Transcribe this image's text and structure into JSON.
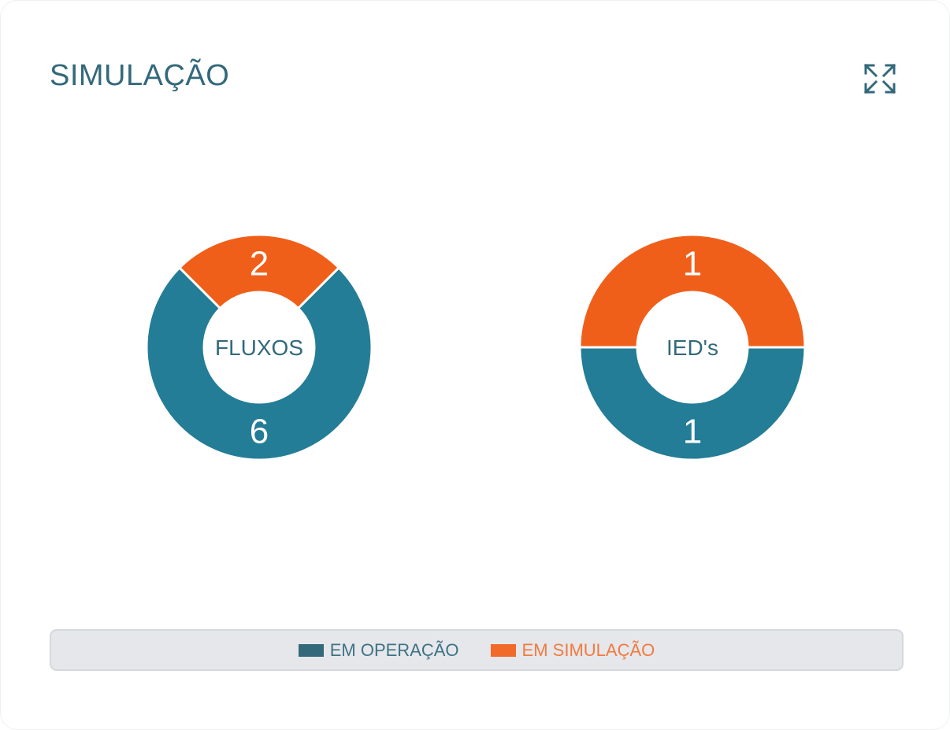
{
  "header": {
    "title": "SIMULAÇÃO",
    "expand_icon": "expand-arrows-icon"
  },
  "colors": {
    "operacao": "#237d96",
    "simulacao": "#f05f1a",
    "legend_operacao_text": "#3f7284",
    "legend_simulacao_text": "#f27a3f",
    "title": "#33697b"
  },
  "chart_data": [
    {
      "type": "pie",
      "variant": "donut",
      "center_label": "FLUXOS",
      "categories": [
        "EM OPERAÇÃO",
        "EM SIMULAÇÃO"
      ],
      "values": [
        6,
        2
      ]
    },
    {
      "type": "pie",
      "variant": "donut",
      "center_label": "IED's",
      "categories": [
        "EM OPERAÇÃO",
        "EM SIMULAÇÃO"
      ],
      "values": [
        1,
        1
      ]
    }
  ],
  "legend": {
    "position": "bottom",
    "items": [
      {
        "label": "EM OPERAÇÃO"
      },
      {
        "label": "EM SIMULAÇÃO"
      }
    ]
  }
}
